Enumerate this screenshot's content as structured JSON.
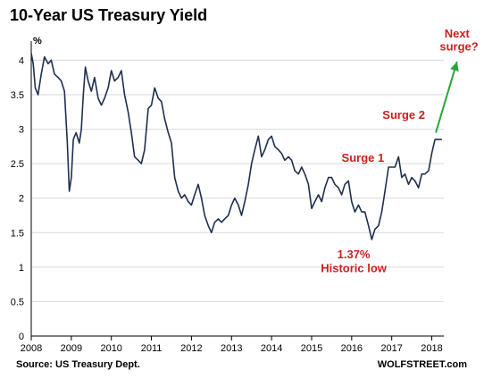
{
  "chart_data": {
    "type": "line",
    "title": "10-Year US Treasury Yield",
    "ylabel": "%",
    "xlim": [
      2008,
      2018.3
    ],
    "ylim": [
      0,
      4.2
    ],
    "yticks": [
      "0",
      "0.5",
      "1",
      "1.5",
      "2",
      "2.5",
      "3",
      "3.5",
      "4"
    ],
    "xticks": [
      "2008",
      "2009",
      "2010",
      "2011",
      "2012",
      "2013",
      "2014",
      "2015",
      "2016",
      "2017",
      "2018"
    ],
    "series": [
      {
        "color": "#1f2f4f",
        "x": [
          2008.0,
          2008.05,
          2008.1,
          2008.17,
          2008.25,
          2008.33,
          2008.42,
          2008.5,
          2008.58,
          2008.67,
          2008.75,
          2008.83,
          2008.9,
          2008.95,
          2009.0,
          2009.05,
          2009.12,
          2009.2,
          2009.25,
          2009.3,
          2009.35,
          2009.42,
          2009.5,
          2009.58,
          2009.67,
          2009.75,
          2009.83,
          2009.92,
          2010.0,
          2010.08,
          2010.17,
          2010.25,
          2010.33,
          2010.42,
          2010.5,
          2010.58,
          2010.67,
          2010.75,
          2010.83,
          2010.92,
          2011.0,
          2011.08,
          2011.17,
          2011.25,
          2011.33,
          2011.42,
          2011.5,
          2011.58,
          2011.67,
          2011.75,
          2011.83,
          2011.92,
          2012.0,
          2012.08,
          2012.17,
          2012.25,
          2012.33,
          2012.42,
          2012.5,
          2012.58,
          2012.67,
          2012.75,
          2012.83,
          2012.92,
          2013.0,
          2013.08,
          2013.17,
          2013.25,
          2013.33,
          2013.42,
          2013.5,
          2013.58,
          2013.67,
          2013.75,
          2013.83,
          2013.92,
          2014.0,
          2014.08,
          2014.17,
          2014.25,
          2014.33,
          2014.42,
          2014.5,
          2014.58,
          2014.67,
          2014.75,
          2014.83,
          2014.92,
          2015.0,
          2015.08,
          2015.17,
          2015.25,
          2015.33,
          2015.42,
          2015.5,
          2015.58,
          2015.67,
          2015.75,
          2015.83,
          2015.92,
          2016.0,
          2016.08,
          2016.17,
          2016.25,
          2016.33,
          2016.42,
          2016.5,
          2016.58,
          2016.67,
          2016.75,
          2016.83,
          2016.92,
          2017.0,
          2017.08,
          2017.17,
          2017.25,
          2017.33,
          2017.42,
          2017.5,
          2017.58,
          2017.67,
          2017.75,
          2017.83,
          2017.92,
          2018.0,
          2018.08,
          2018.17,
          2018.25
        ],
        "y": [
          4.1,
          3.95,
          3.6,
          3.5,
          3.8,
          4.05,
          3.95,
          4.0,
          3.8,
          3.75,
          3.7,
          3.55,
          2.8,
          2.1,
          2.3,
          2.85,
          2.95,
          2.8,
          3.0,
          3.5,
          3.9,
          3.7,
          3.55,
          3.75,
          3.45,
          3.35,
          3.45,
          3.6,
          3.85,
          3.7,
          3.75,
          3.85,
          3.5,
          3.25,
          2.95,
          2.6,
          2.55,
          2.5,
          2.7,
          3.3,
          3.35,
          3.6,
          3.45,
          3.4,
          3.15,
          2.95,
          2.8,
          2.3,
          2.1,
          2.0,
          2.05,
          1.95,
          1.9,
          2.05,
          2.2,
          2.0,
          1.75,
          1.6,
          1.5,
          1.65,
          1.7,
          1.65,
          1.7,
          1.75,
          1.9,
          2.0,
          1.9,
          1.75,
          1.95,
          2.2,
          2.5,
          2.7,
          2.9,
          2.6,
          2.7,
          2.85,
          2.9,
          2.75,
          2.7,
          2.65,
          2.55,
          2.6,
          2.55,
          2.4,
          2.35,
          2.45,
          2.35,
          2.2,
          1.85,
          1.95,
          2.05,
          1.95,
          2.15,
          2.3,
          2.3,
          2.2,
          2.15,
          2.05,
          2.2,
          2.25,
          1.95,
          1.8,
          1.9,
          1.8,
          1.8,
          1.6,
          1.4,
          1.55,
          1.6,
          1.8,
          2.1,
          2.45,
          2.45,
          2.45,
          2.6,
          2.3,
          2.35,
          2.2,
          2.3,
          2.25,
          2.15,
          2.35,
          2.35,
          2.4,
          2.65,
          2.85,
          2.85,
          2.85
        ]
      }
    ],
    "annotations": [
      {
        "text": "Surge 1",
        "x": 2016.28,
        "y": 2.53
      },
      {
        "text": "Surge 2",
        "x": 2017.3,
        "y": 3.15
      },
      {
        "text": "1.37%",
        "x": 2016.05,
        "y": 1.13
      },
      {
        "text": "Historic low",
        "x": 2016.05,
        "y": 0.93
      },
      {
        "text": "Next",
        "x": 2018.63,
        "y": 4.33
      },
      {
        "text": "surge?",
        "x": 2018.68,
        "y": 4.14
      }
    ],
    "arrow": {
      "from": [
        2018.1,
        2.95
      ],
      "to": [
        2018.63,
        3.98
      ],
      "color": "#2aa43a"
    }
  },
  "footer": {
    "source": "Source: US Treasury Dept.",
    "brand": "WOLFSTREET.com"
  }
}
